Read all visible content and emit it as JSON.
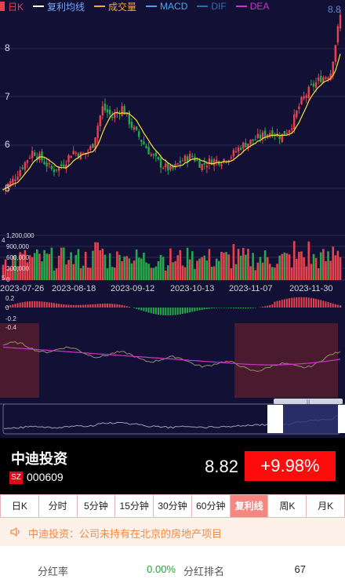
{
  "legend": [
    {
      "label": "日K",
      "color": "#e9414d"
    },
    {
      "label": "复利均线",
      "color": "#ffffff"
    },
    {
      "label": "成交量",
      "color": "#f0a838"
    },
    {
      "label": "MACD",
      "color": "#4aa5e8"
    },
    {
      "label": "DIF",
      "color": "#2a6fb3"
    },
    {
      "label": "DEA",
      "color": "#cc33cc"
    }
  ],
  "price_axis": {
    "ticks": [
      "8",
      "7",
      "6",
      "5"
    ],
    "top_right_label": "8.8"
  },
  "volume_axis": {
    "ticks": [
      "1,200,000",
      "900,000",
      "600,000",
      "300,000",
      "0"
    ],
    "left_labels": [
      "4",
      "5"
    ]
  },
  "dates": [
    "2023-07-26",
    "2023-08-18",
    "2023-09-12",
    "2023-10-13",
    "2023-11-07",
    "2023-11-30"
  ],
  "macd_axis": {
    "ticks": [
      "0.2",
      "0",
      "-0.2",
      "-0.4"
    ]
  },
  "navigator": {
    "handle_label": "|||"
  },
  "stock": {
    "name": "中迪投资",
    "exchange_badge": "SZ",
    "code": "000609",
    "price": "8.82",
    "change_pct": "+9.98%"
  },
  "tabs": [
    {
      "label": "日K",
      "active": false
    },
    {
      "label": "分时",
      "active": false
    },
    {
      "label": "5分钟",
      "active": false
    },
    {
      "label": "15分钟",
      "active": false
    },
    {
      "label": "30分钟",
      "active": false
    },
    {
      "label": "60分钟",
      "active": false
    },
    {
      "label": "复利线",
      "active": true
    },
    {
      "label": "周K",
      "active": false
    },
    {
      "label": "月K",
      "active": false
    }
  ],
  "notice": {
    "icon": "speaker-icon",
    "text": "中迪投资：公司未持有在北京的房地产项目"
  },
  "dividend": {
    "rate_label": "分红率",
    "rate_value": "0.00%",
    "rank_label": "分红排名",
    "rank_value": "67"
  },
  "colors": {
    "up": "#e9414d",
    "down": "#26a84a",
    "ma_line": "#f5e23b",
    "chart_bg": "#121135",
    "change_bg": "#fe0c0d",
    "active_tab": "#f58782",
    "notice_text": "#f08a45"
  },
  "chart_data": {
    "type": "candlestick",
    "x_labels": [
      "2023-07-26",
      "2023-08-18",
      "2023-09-12",
      "2023-10-13",
      "2023-11-07",
      "2023-11-30"
    ],
    "price_range": [
      4.9,
      8.9
    ],
    "last_price": 8.82,
    "close_path": [
      5.2,
      5.4,
      5.7,
      6.0,
      5.8,
      5.6,
      5.7,
      6.0,
      5.9,
      6.1,
      6.9,
      6.7,
      6.9,
      6.5,
      6.2,
      5.9,
      5.7,
      5.6,
      5.8,
      5.9,
      5.7,
      5.8,
      5.8,
      5.9,
      6.1,
      6.2,
      6.3,
      6.4,
      6.3,
      6.5,
      7.0,
      7.3,
      7.5,
      7.6,
      8.82
    ]
  }
}
